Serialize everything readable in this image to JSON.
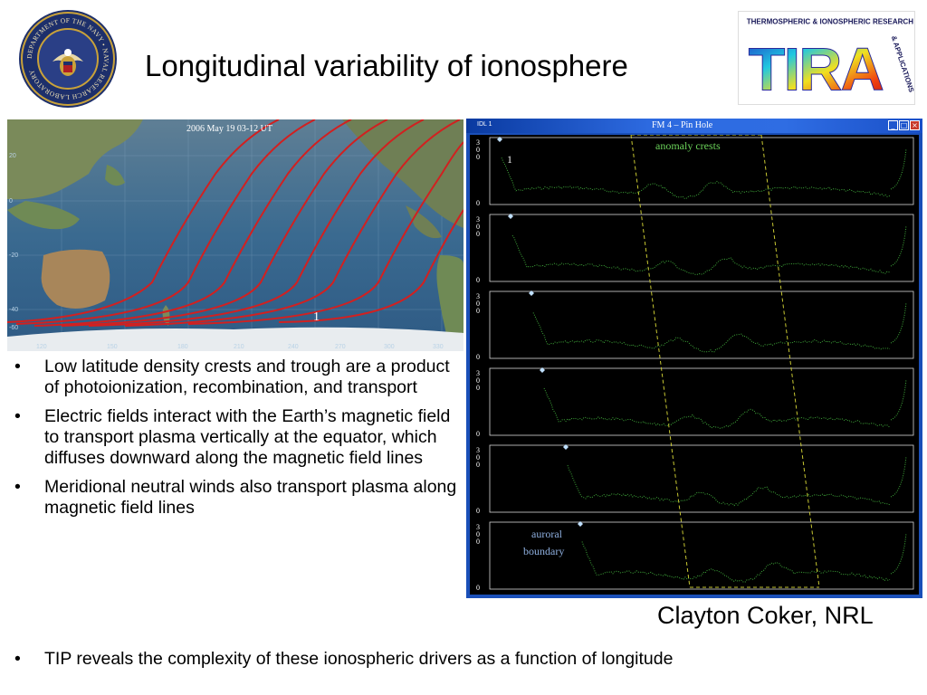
{
  "slide": {
    "title": "Longitudinal variability of ionosphere",
    "credit": "Clayton Coker, NRL"
  },
  "seal": {
    "ring_text": "DEPARTMENT OF THE NAVY • NAVAL RESEARCH LABORATORY",
    "colors": {
      "outer": "#1d2f6b",
      "ring": "#c9a23a",
      "field": "#2a3f86"
    }
  },
  "logo": {
    "arc_text": "THERMOSPHERIC & IONOSPHERIC RESEARCH",
    "side_text": "& APPLICATIONS",
    "letters": "TIRA"
  },
  "map": {
    "timestamp": "2006 May 19  03-12 UT",
    "marker": "1",
    "lon_ticks": [
      "120",
      "150",
      "180",
      "210",
      "240",
      "270",
      "300",
      "330"
    ],
    "lat_ticks": [
      "20",
      "0",
      "-20",
      "-40",
      "-60"
    ]
  },
  "idl_window": {
    "label": "IDL 1",
    "title": "FM 4 – Pin Hole",
    "panel_ticks": [
      "3",
      "0",
      "0",
      "0"
    ],
    "annotations": {
      "anomaly": "anomaly crests",
      "index": "1",
      "auroral_1": "auroral",
      "auroral_2": "boundary"
    },
    "trace_color": "#3fa83a"
  },
  "bullets": [
    "Low latitude density crests and trough are a product of photoionization, recombination, and transport",
    "Electric fields interact with the Earth’s magnetic field to transport plasma vertically at the equator, which diffuses downward along the magnetic field lines",
    "Meridional neutral winds also transport plasma along magnetic field lines"
  ],
  "bottom_bullet": "TIP reveals the complexity of these ionospheric drivers as a function of longitude",
  "bullet_char": "•"
}
